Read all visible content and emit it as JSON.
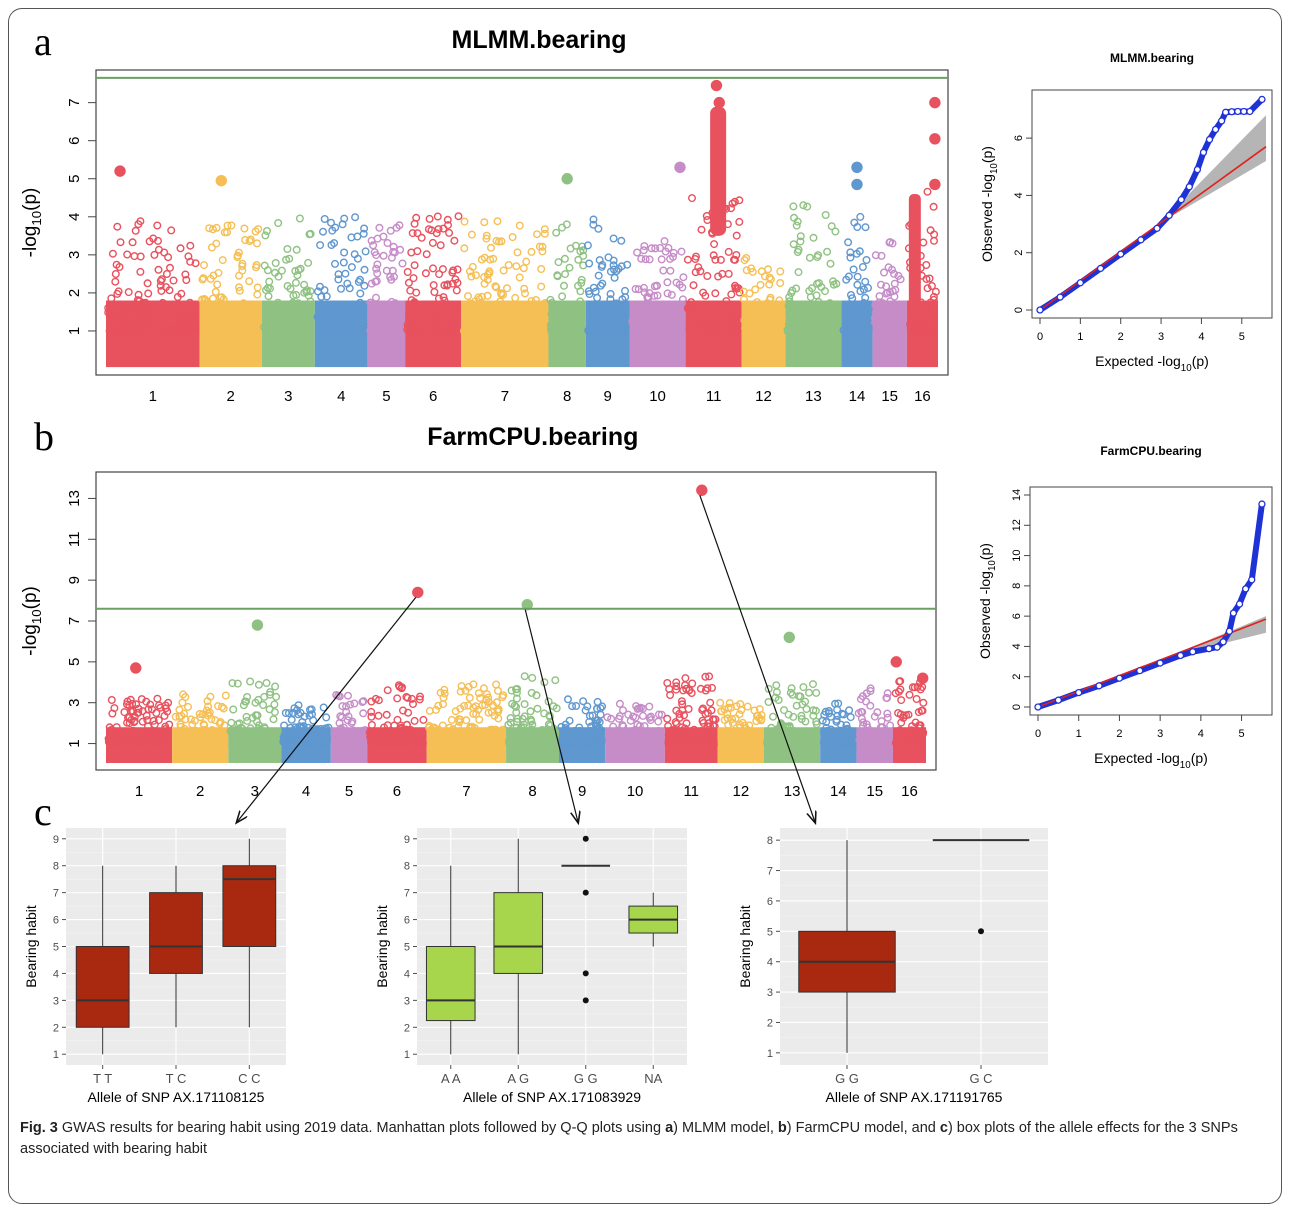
{
  "figure": {
    "panel_labels": [
      "a",
      "b",
      "c"
    ],
    "caption": {
      "prefix": "Fig. 3",
      "text_1": " GWAS results for bearing habit using 2019 data. Manhattan plots followed by Q-Q plots using ",
      "bold_a": "a",
      "text_2": ") MLMM model, ",
      "bold_b": "b",
      "text_3": ") FarmCPU model, and ",
      "bold_c": "c",
      "text_4": ") box plots of the allele effects for the 3 SNPs associated with bearing habit"
    }
  },
  "colors": {
    "chrom_palette": [
      "#e8515e",
      "#f5bf55",
      "#8fc282",
      "#5f97cf",
      "#c58cc8"
    ],
    "threshold_line": "#6aa061",
    "qq_points": "#1f32d6",
    "qq_line": "#e0211c",
    "qq_band": "#b5b5b5",
    "box_red": "#a82810",
    "box_green": "#a7d54c",
    "ggplot_bg": "#ebebeb"
  },
  "chart_data": [
    {
      "id": "mlmm-manhattan",
      "type": "scatter",
      "title": "MLMM.bearing",
      "ylabel": "-log10(p)",
      "ylim": [
        0,
        7.7
      ],
      "yticks": [
        1,
        2,
        3,
        4,
        5,
        6,
        7
      ],
      "threshold": 7.65,
      "chromosomes": [
        "1",
        "2",
        "3",
        "4",
        "5",
        "6",
        "7",
        "8",
        "9",
        "10",
        "11",
        "12",
        "13",
        "14",
        "15",
        "16"
      ],
      "chrom_widths": [
        1.5,
        1.0,
        0.85,
        0.85,
        0.6,
        0.9,
        1.4,
        0.6,
        0.7,
        0.9,
        0.9,
        0.7,
        0.9,
        0.5,
        0.55,
        0.5
      ],
      "max_background": [
        3.9,
        3.9,
        4.0,
        4.1,
        3.9,
        4.1,
        3.9,
        3.9,
        4.0,
        3.4,
        4.5,
        3.0,
        4.5,
        4.0,
        3.4,
        4.8
      ],
      "peaks": [
        {
          "chrom": "1",
          "pos": 0.15,
          "value": 5.2
        },
        {
          "chrom": "2",
          "pos": 0.35,
          "value": 4.95
        },
        {
          "chrom": "8",
          "pos": 0.5,
          "value": 5.0
        },
        {
          "chrom": "10",
          "pos": 0.9,
          "value": 5.3
        },
        {
          "chrom": "11",
          "pos": 0.55,
          "value": 7.45
        },
        {
          "chrom": "11",
          "pos": 0.6,
          "value": 7.0
        },
        {
          "chrom": "11",
          "pos": 0.62,
          "value": 6.6
        },
        {
          "chrom": "11",
          "pos": 0.55,
          "value": 6.2
        },
        {
          "chrom": "14",
          "pos": 0.5,
          "value": 5.3
        },
        {
          "chrom": "14",
          "pos": 0.5,
          "value": 4.85
        },
        {
          "chrom": "16",
          "pos": 0.9,
          "value": 7.0
        },
        {
          "chrom": "16",
          "pos": 0.9,
          "value": 6.05
        },
        {
          "chrom": "16",
          "pos": 0.9,
          "value": 4.85
        }
      ]
    },
    {
      "id": "mlmm-qq",
      "type": "scatter",
      "title": "MLMM.bearing",
      "xlabel": "Expected  -log10(p)",
      "ylabel": "Observed  -log10(p)",
      "xlim": [
        0,
        5.6
      ],
      "ylim": [
        0,
        7.4
      ],
      "xticks": [
        0,
        1,
        2,
        3,
        4,
        5
      ],
      "yticks": [
        0,
        2,
        4,
        6
      ],
      "points": [
        [
          0,
          0
        ],
        [
          0.5,
          0.45
        ],
        [
          1,
          0.95
        ],
        [
          1.5,
          1.45
        ],
        [
          2,
          1.95
        ],
        [
          2.5,
          2.45
        ],
        [
          2.9,
          2.85
        ],
        [
          3.2,
          3.3
        ],
        [
          3.5,
          3.85
        ],
        [
          3.7,
          4.3
        ],
        [
          3.9,
          4.9
        ],
        [
          4.05,
          5.5
        ],
        [
          4.2,
          5.95
        ],
        [
          4.35,
          6.3
        ],
        [
          4.5,
          6.6
        ],
        [
          4.6,
          6.9
        ],
        [
          4.75,
          6.92
        ],
        [
          4.9,
          6.93
        ],
        [
          5.05,
          6.93
        ],
        [
          5.2,
          6.93
        ],
        [
          5.5,
          7.35
        ]
      ],
      "reference_line": [
        [
          0,
          0
        ],
        [
          5.6,
          5.7
        ]
      ],
      "confidence_band": {
        "start_x": 3.0,
        "end_x": 5.6,
        "upper_end": 6.8,
        "lower_end": 5.2
      }
    },
    {
      "id": "farmcpu-manhattan",
      "type": "scatter",
      "title": "FarmCPU.bearing",
      "ylabel": "-log10(p)",
      "ylim": [
        0,
        14
      ],
      "yticks": [
        1,
        3,
        5,
        7,
        9,
        11,
        13
      ],
      "threshold": 7.6,
      "chromosomes": [
        "1",
        "2",
        "3",
        "4",
        "5",
        "6",
        "7",
        "8",
        "9",
        "10",
        "11",
        "12",
        "13",
        "14",
        "15",
        "16"
      ],
      "chrom_widths": [
        1.0,
        0.85,
        0.8,
        0.75,
        0.55,
        0.9,
        1.2,
        0.8,
        0.7,
        0.9,
        0.8,
        0.7,
        0.85,
        0.55,
        0.55,
        0.5
      ],
      "max_background": [
        3.2,
        3.5,
        4.1,
        3.0,
        3.4,
        3.9,
        3.9,
        4.3,
        3.3,
        3.1,
        4.3,
        3.0,
        4.0,
        3.3,
        3.9,
        4.2
      ],
      "peaks": [
        {
          "chrom": "1",
          "pos": 0.45,
          "value": 4.7
        },
        {
          "chrom": "3",
          "pos": 0.55,
          "value": 6.8
        },
        {
          "chrom": "6",
          "pos": 0.85,
          "value": 8.4
        },
        {
          "chrom": "8",
          "pos": 0.4,
          "value": 7.8
        },
        {
          "chrom": "11",
          "pos": 0.7,
          "value": 13.4
        },
        {
          "chrom": "13",
          "pos": 0.45,
          "value": 6.2
        },
        {
          "chrom": "16",
          "pos": 0.1,
          "value": 5.0
        },
        {
          "chrom": "16",
          "pos": 0.9,
          "value": 4.2
        }
      ]
    },
    {
      "id": "farmcpu-qq",
      "type": "scatter",
      "title": "FarmCPU.bearing",
      "xlabel": "Expected  -log10(p)",
      "ylabel": "Observed  -log10(p)",
      "xlim": [
        0,
        5.6
      ],
      "ylim": [
        0,
        14
      ],
      "xticks": [
        0,
        1,
        2,
        3,
        4,
        5
      ],
      "yticks": [
        0,
        2,
        4,
        6,
        8,
        10,
        12,
        14
      ],
      "points": [
        [
          0,
          0
        ],
        [
          0.5,
          0.45
        ],
        [
          1,
          0.95
        ],
        [
          1.5,
          1.4
        ],
        [
          2,
          1.9
        ],
        [
          2.5,
          2.4
        ],
        [
          3,
          2.9
        ],
        [
          3.5,
          3.4
        ],
        [
          3.8,
          3.65
        ],
        [
          4.2,
          3.85
        ],
        [
          4.4,
          3.95
        ],
        [
          4.55,
          4.3
        ],
        [
          4.7,
          5.0
        ],
        [
          4.8,
          6.2
        ],
        [
          4.95,
          6.8
        ],
        [
          5.1,
          7.8
        ],
        [
          5.25,
          8.4
        ],
        [
          5.5,
          13.4
        ]
      ],
      "reference_line": [
        [
          0,
          0
        ],
        [
          5.6,
          5.8
        ]
      ],
      "confidence_band": {
        "start_x": 3.2,
        "end_x": 5.6,
        "upper_end": 6.0,
        "lower_end": 4.9
      }
    },
    {
      "id": "box-ax171108125",
      "type": "box",
      "xlabel": "Allele of SNP AX.171108125",
      "ylabel": "Bearing habit",
      "ylim": [
        0.6,
        9.4
      ],
      "yticks": [
        1,
        2,
        3,
        4,
        5,
        6,
        7,
        8,
        9
      ],
      "categories": [
        "T T",
        "T C",
        "C C"
      ],
      "boxes": [
        {
          "min": 1,
          "q1": 2,
          "median": 3,
          "q3": 5,
          "max": 8
        },
        {
          "min": 2,
          "q1": 4,
          "median": 5,
          "q3": 7,
          "max": 8
        },
        {
          "min": 2,
          "q1": 5,
          "median": 7.5,
          "q3": 8,
          "max": 9
        }
      ],
      "outliers": []
    },
    {
      "id": "box-ax171083929",
      "type": "box",
      "xlabel": "Allele of SNP AX.171083929",
      "ylabel": "Bearing habit",
      "ylim": [
        0.6,
        9.4
      ],
      "yticks": [
        1,
        2,
        3,
        4,
        5,
        6,
        7,
        8,
        9
      ],
      "categories": [
        "A A",
        "A G",
        "G G",
        "NA"
      ],
      "boxes": [
        {
          "min": 1,
          "q1": 2.25,
          "median": 3,
          "q3": 5,
          "max": 8
        },
        {
          "min": 1,
          "q1": 4,
          "median": 5,
          "q3": 7,
          "max": 9
        },
        {
          "min": 8,
          "q1": 8,
          "median": 8,
          "q3": 8,
          "max": 8
        },
        {
          "min": 5,
          "q1": 5.5,
          "median": 6,
          "q3": 6.5,
          "max": 7
        }
      ],
      "outliers": [
        {
          "category": "G G",
          "value": 9
        },
        {
          "category": "G G",
          "value": 7
        },
        {
          "category": "G G",
          "value": 4
        },
        {
          "category": "G G",
          "value": 3
        }
      ]
    },
    {
      "id": "box-ax171191765",
      "type": "box",
      "xlabel": "Allele of SNP AX.171191765",
      "ylabel": "Bearing habit",
      "ylim": [
        0.6,
        8.4
      ],
      "yticks": [
        1,
        2,
        3,
        4,
        5,
        6,
        7,
        8
      ],
      "categories": [
        "G G",
        "G C"
      ],
      "boxes": [
        {
          "min": 1,
          "q1": 3,
          "median": 4,
          "q3": 5,
          "max": 8
        },
        {
          "min": 8,
          "q1": 8,
          "median": 8,
          "q3": 8,
          "max": 8
        }
      ],
      "outliers": [
        {
          "category": "G C",
          "value": 5
        }
      ]
    }
  ]
}
